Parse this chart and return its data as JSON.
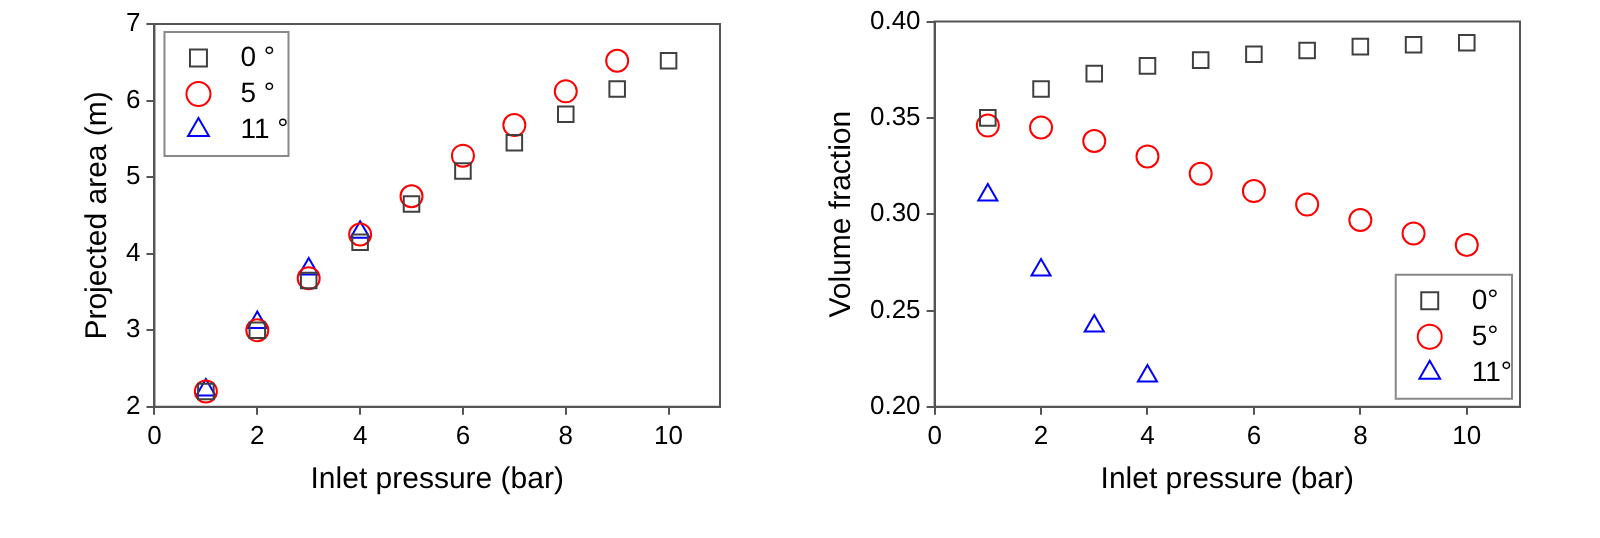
{
  "chart_data": [
    {
      "type": "scatter",
      "xlabel": "Inlet pressure (bar)",
      "ylabel": "Projected area (m)",
      "x": [
        1,
        2,
        3,
        4,
        5,
        6,
        7,
        8,
        9,
        10
      ],
      "xlim": [
        0,
        11
      ],
      "xticks": [
        0,
        2,
        4,
        6,
        8,
        10
      ],
      "ylim": [
        2,
        7
      ],
      "yticks": [
        2,
        3,
        4,
        5,
        6,
        7
      ],
      "grid": false,
      "legend": "top left",
      "series": [
        {
          "name": "0 °",
          "color": "#404040",
          "marker": "square",
          "values": [
            2.2,
            3.0,
            3.65,
            4.15,
            4.65,
            5.08,
            5.45,
            5.82,
            6.15,
            6.52
          ]
        },
        {
          "name": "5 °",
          "color": "#ff0000",
          "marker": "circle",
          "values": [
            2.2,
            3.0,
            3.68,
            4.25,
            4.75,
            5.28,
            5.68,
            6.12,
            6.52,
            null
          ]
        },
        {
          "name": "11 °",
          "color": "#0000ff",
          "marker": "triangle",
          "values": [
            2.22,
            3.1,
            3.8,
            4.28,
            null,
            null,
            null,
            null,
            null,
            null
          ]
        }
      ]
    },
    {
      "type": "scatter",
      "xlabel": "Inlet pressure (bar)",
      "ylabel": "Volume fraction",
      "x": [
        1,
        2,
        3,
        4,
        5,
        6,
        7,
        8,
        9,
        10
      ],
      "xlim": [
        0,
        11
      ],
      "xticks": [
        0,
        2,
        4,
        6,
        8,
        10
      ],
      "ylim": [
        0.2,
        0.4
      ],
      "yticks": [
        {
          "value": 0.2,
          "label": "0.20"
        },
        {
          "value": 0.25,
          "label": "0.25"
        },
        {
          "value": 0.3,
          "label": "0.30"
        },
        {
          "value": 0.35,
          "label": "0.35"
        },
        {
          "value": 0.4,
          "label": "0.40"
        }
      ],
      "grid": false,
      "legend": "bottom right",
      "series": [
        {
          "name": "0°",
          "color": "#404040",
          "marker": "square",
          "values": [
            0.35,
            0.365,
            0.373,
            0.377,
            0.38,
            0.383,
            0.385,
            0.387,
            0.388,
            0.389
          ]
        },
        {
          "name": "5°",
          "color": "#ff0000",
          "marker": "circle",
          "values": [
            0.346,
            0.345,
            0.338,
            0.33,
            0.321,
            0.312,
            0.305,
            0.297,
            0.29,
            0.284
          ]
        },
        {
          "name": "11°",
          "color": "#0000ff",
          "marker": "triangle",
          "values": [
            0.31,
            0.271,
            0.242,
            0.216,
            null,
            null,
            null,
            null,
            null,
            null
          ]
        }
      ]
    }
  ]
}
